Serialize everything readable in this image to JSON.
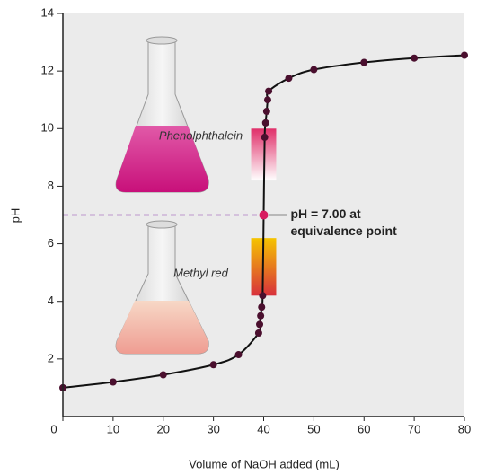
{
  "chart_data": {
    "type": "line",
    "xlabel": "Volume of NaOH added (mL)",
    "ylabel": "pH",
    "x": [
      0,
      10,
      20,
      30,
      35,
      39,
      39.2,
      39.4,
      39.6,
      39.8,
      40,
      40.2,
      40.4,
      40.6,
      40.8,
      41,
      45,
      50,
      60,
      70,
      80
    ],
    "series": [
      {
        "line_color": "#111111",
        "marker_color": "#4a0f2e",
        "values": [
          1.0,
          1.2,
          1.45,
          1.8,
          2.15,
          2.9,
          3.2,
          3.5,
          3.8,
          4.2,
          7.0,
          9.7,
          10.2,
          10.6,
          11.0,
          11.3,
          11.75,
          12.05,
          12.3,
          12.45,
          12.55
        ]
      }
    ],
    "xlim": [
      0,
      80
    ],
    "xticks": [
      0,
      10,
      20,
      30,
      40,
      50,
      60,
      70,
      80
    ],
    "ylim": [
      0,
      14
    ],
    "yticks": [
      2,
      4,
      6,
      8,
      10,
      12,
      14
    ],
    "equivalence": {
      "x": 40,
      "y": 7.0,
      "color": "#d81b60",
      "line_color": "#8e44ad",
      "label": [
        "pH = 7.00 at",
        "equivalence point"
      ]
    },
    "indicators": [
      {
        "name": "Phenolphthalein",
        "range": [
          8.2,
          10
        ],
        "x_range": [
          37.5,
          42.5
        ],
        "colors": [
          "#ffffff",
          "#e0306a"
        ]
      },
      {
        "name": "Methyl red",
        "range": [
          4.2,
          6.2
        ],
        "x_range": [
          37.5,
          42.5
        ],
        "colors": [
          "#d8303c",
          "#f5c400"
        ]
      }
    ]
  }
}
